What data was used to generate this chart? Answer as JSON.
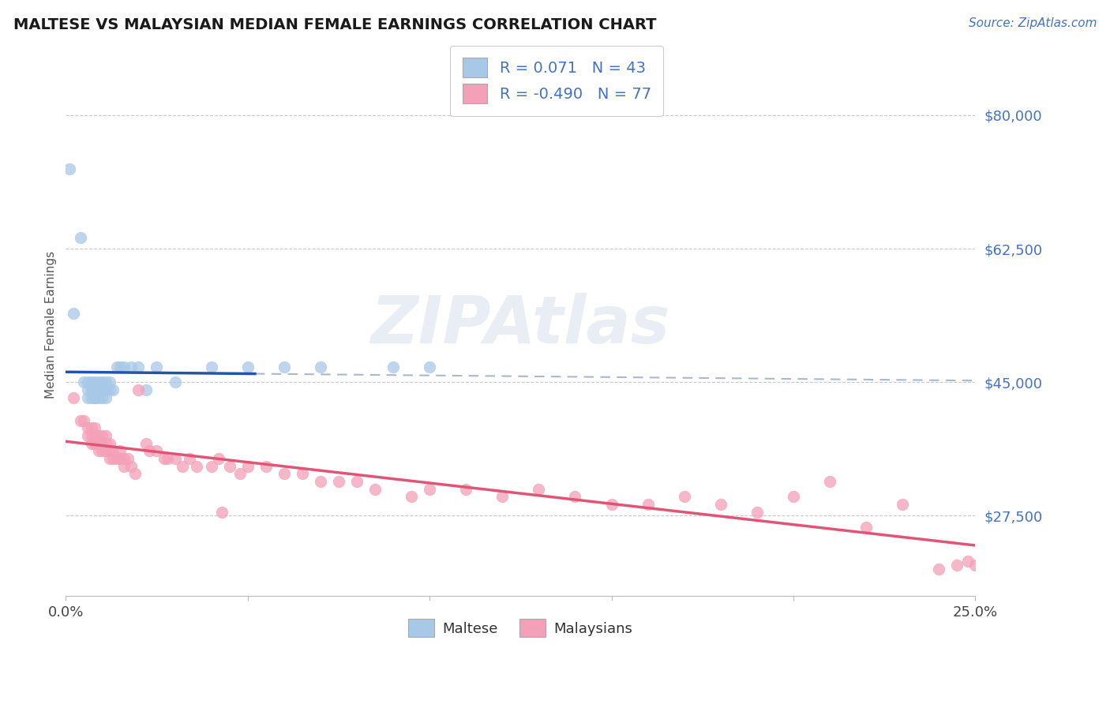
{
  "title": "MALTESE VS MALAYSIAN MEDIAN FEMALE EARNINGS CORRELATION CHART",
  "source": "Source: ZipAtlas.com",
  "ylabel": "Median Female Earnings",
  "xlim": [
    0.0,
    0.25
  ],
  "ylim": [
    17000,
    88000
  ],
  "yticks": [
    27500,
    45000,
    62500,
    80000
  ],
  "ytick_labels": [
    "$27,500",
    "$45,000",
    "$62,500",
    "$80,000"
  ],
  "xticks": [
    0.0,
    0.05,
    0.1,
    0.15,
    0.2,
    0.25
  ],
  "xtick_labels": [
    "0.0%",
    "",
    "",
    "",
    "",
    "25.0%"
  ],
  "title_color": "#1a1a1a",
  "source_color": "#4472c4",
  "ytick_color": "#4472c4",
  "grid_color": "#c8c8c8",
  "background_color": "#ffffff",
  "maltese_color": "#a8c8e8",
  "malaysian_color": "#f4a0b8",
  "maltese_line_color": "#2255aa",
  "malaysian_line_color": "#e05575",
  "gray_dash_color": "#aab8cc",
  "legend_R1": " 0.071",
  "legend_N1": "43",
  "legend_R2": "-0.490",
  "legend_N2": "77",
  "legend_label1": "Maltese",
  "legend_label2": "Malaysians",
  "watermark": "ZIPAtlas",
  "maltese_x": [
    0.001,
    0.002,
    0.004,
    0.005,
    0.006,
    0.006,
    0.006,
    0.007,
    0.007,
    0.007,
    0.007,
    0.008,
    0.008,
    0.008,
    0.008,
    0.009,
    0.009,
    0.009,
    0.009,
    0.01,
    0.01,
    0.01,
    0.01,
    0.011,
    0.011,
    0.011,
    0.012,
    0.012,
    0.013,
    0.014,
    0.015,
    0.016,
    0.018,
    0.02,
    0.022,
    0.025,
    0.03,
    0.04,
    0.05,
    0.06,
    0.07,
    0.09,
    0.1
  ],
  "maltese_y": [
    73000,
    54000,
    64000,
    45000,
    44000,
    43000,
    45000,
    44000,
    45000,
    43000,
    44000,
    44000,
    43000,
    45000,
    43000,
    44000,
    44000,
    43000,
    45000,
    44000,
    43000,
    45000,
    44000,
    44000,
    45000,
    43000,
    44000,
    45000,
    44000,
    47000,
    47000,
    47000,
    47000,
    47000,
    44000,
    47000,
    45000,
    47000,
    47000,
    47000,
    47000,
    47000,
    47000
  ],
  "malaysian_x": [
    0.002,
    0.004,
    0.005,
    0.006,
    0.006,
    0.007,
    0.007,
    0.007,
    0.008,
    0.008,
    0.008,
    0.008,
    0.009,
    0.009,
    0.009,
    0.01,
    0.01,
    0.01,
    0.01,
    0.011,
    0.011,
    0.011,
    0.012,
    0.012,
    0.012,
    0.013,
    0.013,
    0.014,
    0.015,
    0.015,
    0.016,
    0.016,
    0.017,
    0.018,
    0.019,
    0.02,
    0.022,
    0.023,
    0.025,
    0.027,
    0.028,
    0.03,
    0.032,
    0.034,
    0.036,
    0.04,
    0.042,
    0.045,
    0.048,
    0.05,
    0.055,
    0.06,
    0.065,
    0.07,
    0.075,
    0.085,
    0.095,
    0.1,
    0.11,
    0.12,
    0.13,
    0.14,
    0.15,
    0.16,
    0.17,
    0.18,
    0.19,
    0.2,
    0.21,
    0.22,
    0.23,
    0.24,
    0.245,
    0.248,
    0.25,
    0.08,
    0.043
  ],
  "malaysian_y": [
    43000,
    40000,
    40000,
    38000,
    39000,
    37000,
    38000,
    39000,
    37000,
    38000,
    37000,
    39000,
    37000,
    38000,
    36000,
    37000,
    36000,
    38000,
    37000,
    37000,
    36000,
    38000,
    36000,
    35000,
    37000,
    36000,
    35000,
    35000,
    35000,
    36000,
    35000,
    34000,
    35000,
    34000,
    33000,
    44000,
    37000,
    36000,
    36000,
    35000,
    35000,
    35000,
    34000,
    35000,
    34000,
    34000,
    35000,
    34000,
    33000,
    34000,
    34000,
    33000,
    33000,
    32000,
    32000,
    31000,
    30000,
    31000,
    31000,
    30000,
    31000,
    30000,
    29000,
    29000,
    30000,
    29000,
    28000,
    30000,
    32000,
    26000,
    29000,
    20500,
    21000,
    21500,
    21000,
    32000,
    28000
  ]
}
